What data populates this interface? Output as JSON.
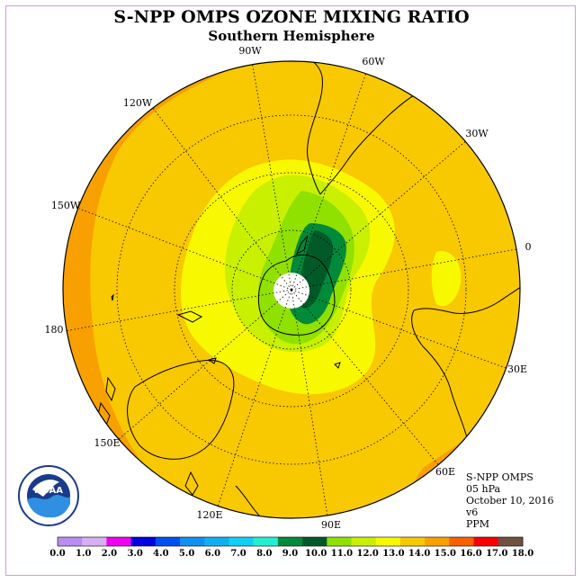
{
  "title": "S-NPP OMPS OZONE MIXING RATIO",
  "subtitle": "Southern Hemisphere",
  "longitude_labels": [
    "90W",
    "60W",
    "30W",
    "0",
    "30E",
    "60E",
    "90E",
    "120E",
    "150E",
    "180",
    "150W",
    "120W"
  ],
  "info": {
    "instrument": "S-NPP OMPS",
    "level": "05 hPa",
    "date": "October 10, 2016",
    "version": "v6",
    "units": "PPM"
  },
  "logo": {
    "text": "NOAA",
    "icon": "noaa-logo-icon"
  },
  "colorbar": {
    "labels": [
      "0.0",
      "1.0",
      "2.0",
      "3.0",
      "4.0",
      "5.0",
      "6.0",
      "7.0",
      "8.0",
      "9.0",
      "10.0",
      "11.0",
      "12.0",
      "13.0",
      "14.0",
      "15.0",
      "16.0",
      "17.0",
      "18.0"
    ],
    "colors": [
      "#b88cf0",
      "#d8b0f0",
      "#f000f0",
      "#0000e0",
      "#0050f0",
      "#1090f0",
      "#10b0f0",
      "#10d0f8",
      "#20f0d0",
      "#008a3a",
      "#005a28",
      "#90e000",
      "#c8f000",
      "#f8f800",
      "#f8c800",
      "#f8a000",
      "#f86000",
      "#f80000",
      "#705040"
    ]
  }
}
